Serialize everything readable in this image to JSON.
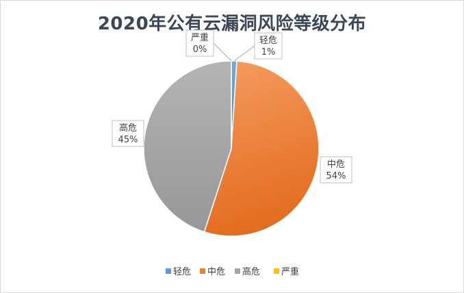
{
  "chart_data": {
    "type": "pie",
    "title": "2020年公有云漏洞风险等级分布",
    "categories": [
      "轻危",
      "中危",
      "高危",
      "严重"
    ],
    "values": [
      1,
      54,
      45,
      0
    ],
    "value_labels": [
      "1%",
      "54%",
      "45%",
      "0%"
    ],
    "colors": [
      "#5b9bd5",
      "#ed7d31",
      "#a5a5a5",
      "#ffc000"
    ],
    "legend_position": "bottom"
  }
}
